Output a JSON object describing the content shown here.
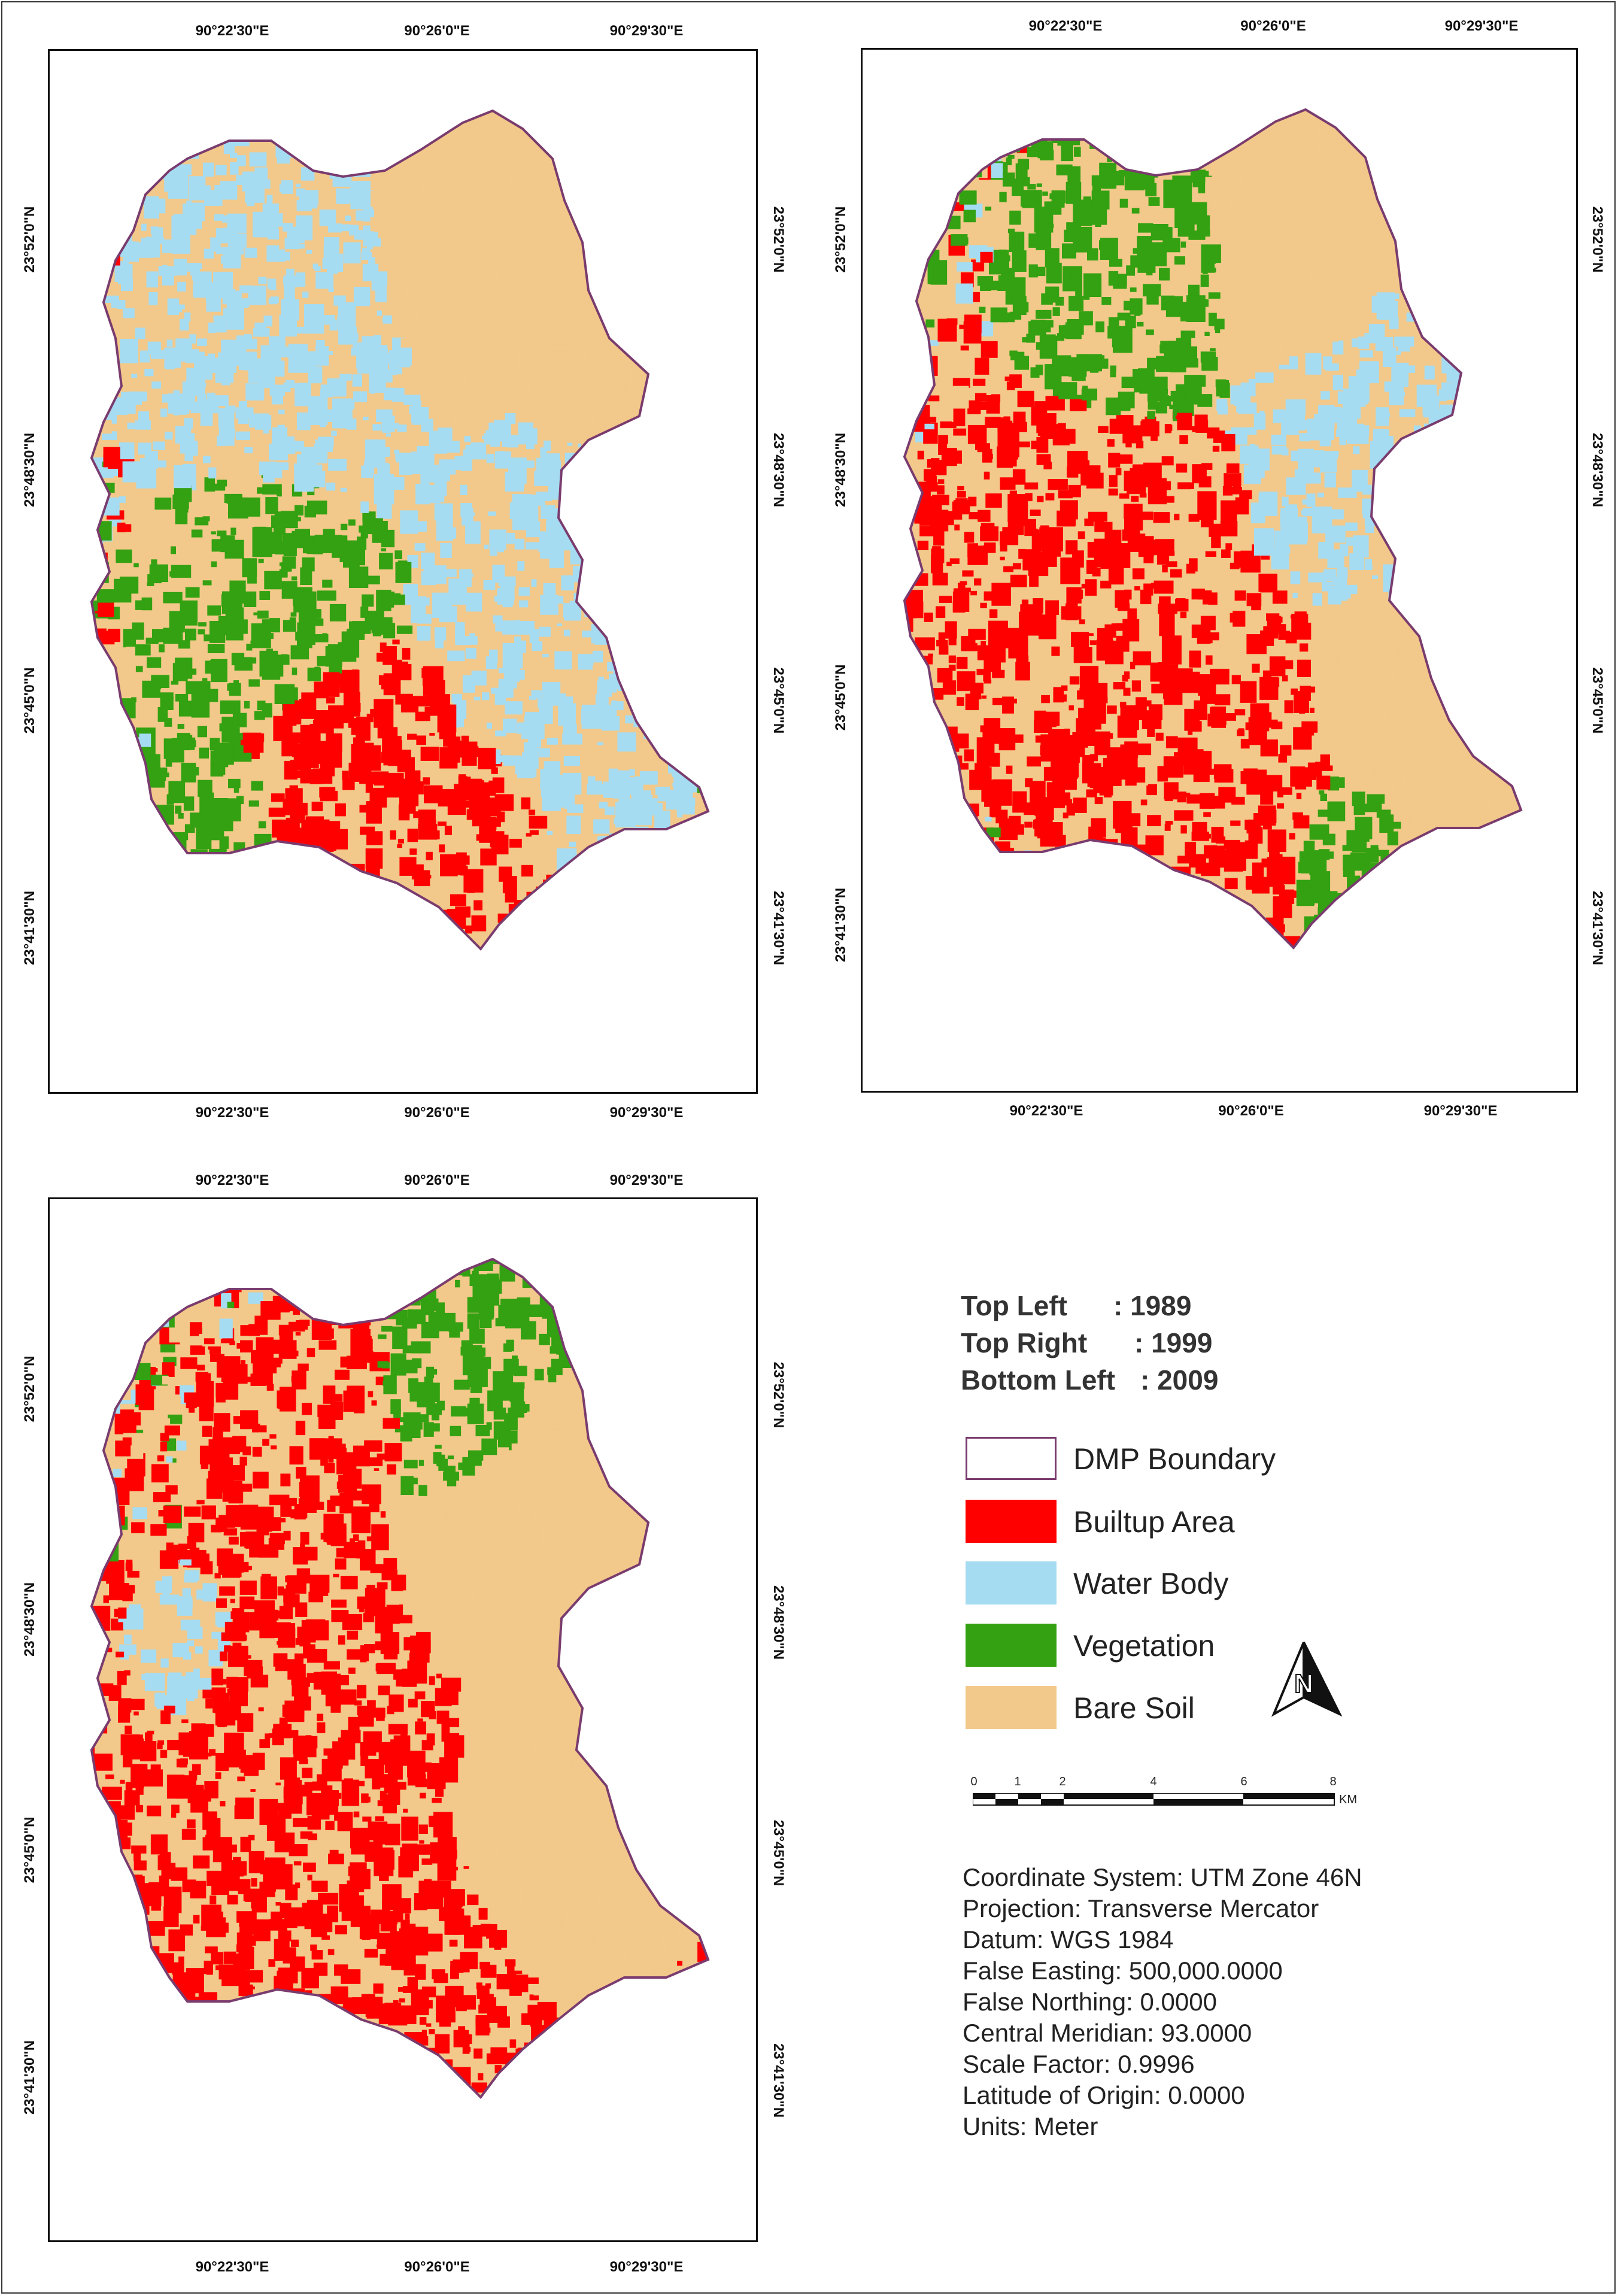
{
  "maps": [
    {
      "id": "map-1989",
      "top_labels": [
        "90°22'30\"E",
        "90°26'0\"E",
        "90°29'30\"E"
      ],
      "bottom_labels": [
        "90°22'30\"E",
        "90°26'0\"E",
        "90°29'30\"E"
      ],
      "left_labels": [
        "23°52'0\"N",
        "23°48'30\"N",
        "23°45'0\"N",
        "23°41'30\"N"
      ],
      "right_labels": [
        "23°52'0\"N",
        "23°48'30\"N",
        "23°45'0\"N",
        "23°41'30\"N"
      ],
      "dominant_classes": [
        "Water Body",
        "Bare Soil",
        "Vegetation",
        "Builtup Area"
      ]
    },
    {
      "id": "map-1999",
      "top_labels": [
        "90°22'30\"E",
        "90°26'0\"E",
        "90°29'30\"E"
      ],
      "bottom_labels": [
        "90°22'30\"E",
        "90°26'0\"E",
        "90°29'30\"E"
      ],
      "left_labels": [
        "23°52'0\"N",
        "23°48'30\"N",
        "23°45'0\"N",
        "23°41'30\"N"
      ],
      "right_labels": [
        "23°52'0\"N",
        "23°48'30\"N",
        "23°45'0\"N",
        "23°41'30\"N"
      ],
      "dominant_classes": [
        "Builtup Area",
        "Water Body",
        "Bare Soil",
        "Vegetation"
      ]
    },
    {
      "id": "map-2009",
      "top_labels": [
        "90°22'30\"E",
        "90°26'0\"E",
        "90°29'30\"E"
      ],
      "bottom_labels": [
        "90°22'30\"E",
        "90°26'0\"E",
        "90°29'30\"E"
      ],
      "left_labels": [
        "23°52'0\"N",
        "23°48'30\"N",
        "23°45'0\"N",
        "23°41'30\"N"
      ],
      "right_labels": [
        "23°52'0\"N",
        "23°48'30\"N",
        "23°45'0\"N",
        "23°41'30\"N"
      ],
      "dominant_classes": [
        "Builtup Area",
        "Bare Soil",
        "Vegetation",
        "Water Body"
      ]
    }
  ],
  "legend": {
    "years": [
      {
        "key": "Top Left",
        "value": ": 1989"
      },
      {
        "key": "Top Right",
        "value": ": 1999"
      },
      {
        "key": "Bottom Left",
        "value": ": 2009"
      }
    ],
    "items": [
      {
        "label": "DMP Boundary",
        "color": "#ffffff",
        "border": "#7a3b6e"
      },
      {
        "label": "Builtup Area",
        "color": "#ff0000"
      },
      {
        "label": "Water Body",
        "color": "#a6dcf2"
      },
      {
        "label": "Vegetation",
        "color": "#33a111"
      },
      {
        "label": "Bare Soil",
        "color": "#f2c98a"
      }
    ],
    "north_arrow": "N",
    "scale_ticks": [
      "0",
      "1",
      "2",
      "4",
      "6",
      "8"
    ],
    "scale_unit": "KM",
    "info": [
      "Coordinate System: UTM Zone 46N",
      "Projection: Transverse Mercator",
      "Datum: WGS 1984",
      "False Easting: 500,000.0000",
      "False Northing: 0.0000",
      "Central Meridian: 93.0000",
      "Scale Factor: 0.9996",
      "Latitude of Origin: 0.0000",
      "Units: Meter"
    ]
  }
}
